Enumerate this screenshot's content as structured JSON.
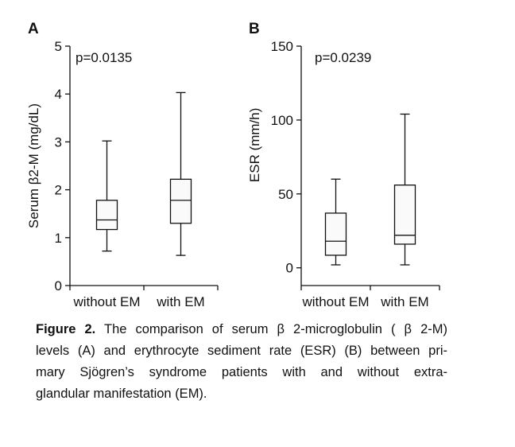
{
  "chart_data": [
    {
      "type": "box",
      "panel_label": "A",
      "ylabel": "Serum β2-M (mg/dL)",
      "ylim": [
        0,
        5
      ],
      "yticks": [
        0,
        1,
        2,
        3,
        4,
        5
      ],
      "annotation": "p=0.0135",
      "categories": [
        "without EM",
        "with EM"
      ],
      "boxes": [
        {
          "name": "without EM",
          "min": 0.72,
          "q1": 1.17,
          "median": 1.37,
          "q3": 1.78,
          "max": 3.02
        },
        {
          "name": "with EM",
          "min": 0.63,
          "q1": 1.3,
          "median": 1.78,
          "q3": 2.22,
          "max": 4.03
        }
      ]
    },
    {
      "type": "box",
      "panel_label": "B",
      "ylabel": "ESR (mm/h)",
      "ylim": [
        -12,
        150
      ],
      "yticks": [
        0,
        50,
        100,
        150
      ],
      "annotation": "p=0.0239",
      "categories": [
        "without EM",
        "with EM"
      ],
      "boxes": [
        {
          "name": "without EM",
          "min": 2,
          "q1": 8.5,
          "median": 18,
          "q3": 37,
          "max": 60
        },
        {
          "name": "with EM",
          "min": 2,
          "q1": 16,
          "median": 22,
          "q3": 56,
          "max": 104
        }
      ]
    }
  ],
  "caption": {
    "figure_label": "Figure  2.",
    "lines": [
      " The comparison of serum  β 2-microglobulin ( β 2-M)",
      "levels (A) and erythrocyte sediment rate (ESR) (B) between pri-",
      "mary Sjögren’s syndrome patients with and without extra-",
      "glandular manifestation (EM)."
    ]
  }
}
